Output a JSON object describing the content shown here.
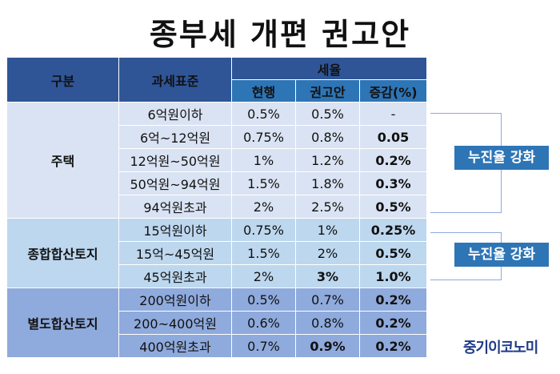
{
  "title": "종부세 개편 권고안",
  "table": {
    "header": {
      "category": "구분",
      "standard": "과세표준",
      "rate_group": "세율",
      "current": "현행",
      "recommended": "권고안",
      "change": "증감(%)"
    },
    "groups": [
      {
        "category": "주택",
        "rows": [
          {
            "standard": "6억원이하",
            "current": "0.5%",
            "recommended": "0.5%",
            "change": "-"
          },
          {
            "standard": "6억~12억원",
            "current": "0.75%",
            "recommended": "0.8%",
            "change": "0.05"
          },
          {
            "standard": "12억원~50억원",
            "current": "1%",
            "recommended": "1.2%",
            "change": "0.2%"
          },
          {
            "standard": "50억원~94억원",
            "current": "1.5%",
            "recommended": "1.8%",
            "change": "0.3%"
          },
          {
            "standard": "94억원초과",
            "current": "2%",
            "recommended": "2.5%",
            "change": "0.5%"
          }
        ]
      },
      {
        "category": "종합합산토지",
        "rows": [
          {
            "standard": "15억원이하",
            "current": "0.75%",
            "recommended": "1%",
            "change": "0.25%"
          },
          {
            "standard": "15억~45억원",
            "current": "1.5%",
            "recommended": "2%",
            "change": "0.5%"
          },
          {
            "standard": "45억원초과",
            "current": "2%",
            "recommended": "3%",
            "change": "1.0%"
          }
        ]
      },
      {
        "category": "별도합산토지",
        "rows": [
          {
            "standard": "200억원이하",
            "current": "0.5%",
            "recommended": "0.7%",
            "change": "0.2%"
          },
          {
            "standard": "200~400억원",
            "current": "0.6%",
            "recommended": "0.8%",
            "change": "0.2%"
          },
          {
            "standard": "400억원초과",
            "current": "0.7%",
            "recommended": "0.9%",
            "change": "0.2%"
          }
        ]
      }
    ]
  },
  "callouts": [
    "누진율 강화",
    "누진율 강화"
  ],
  "brand": "중기이코노미"
}
